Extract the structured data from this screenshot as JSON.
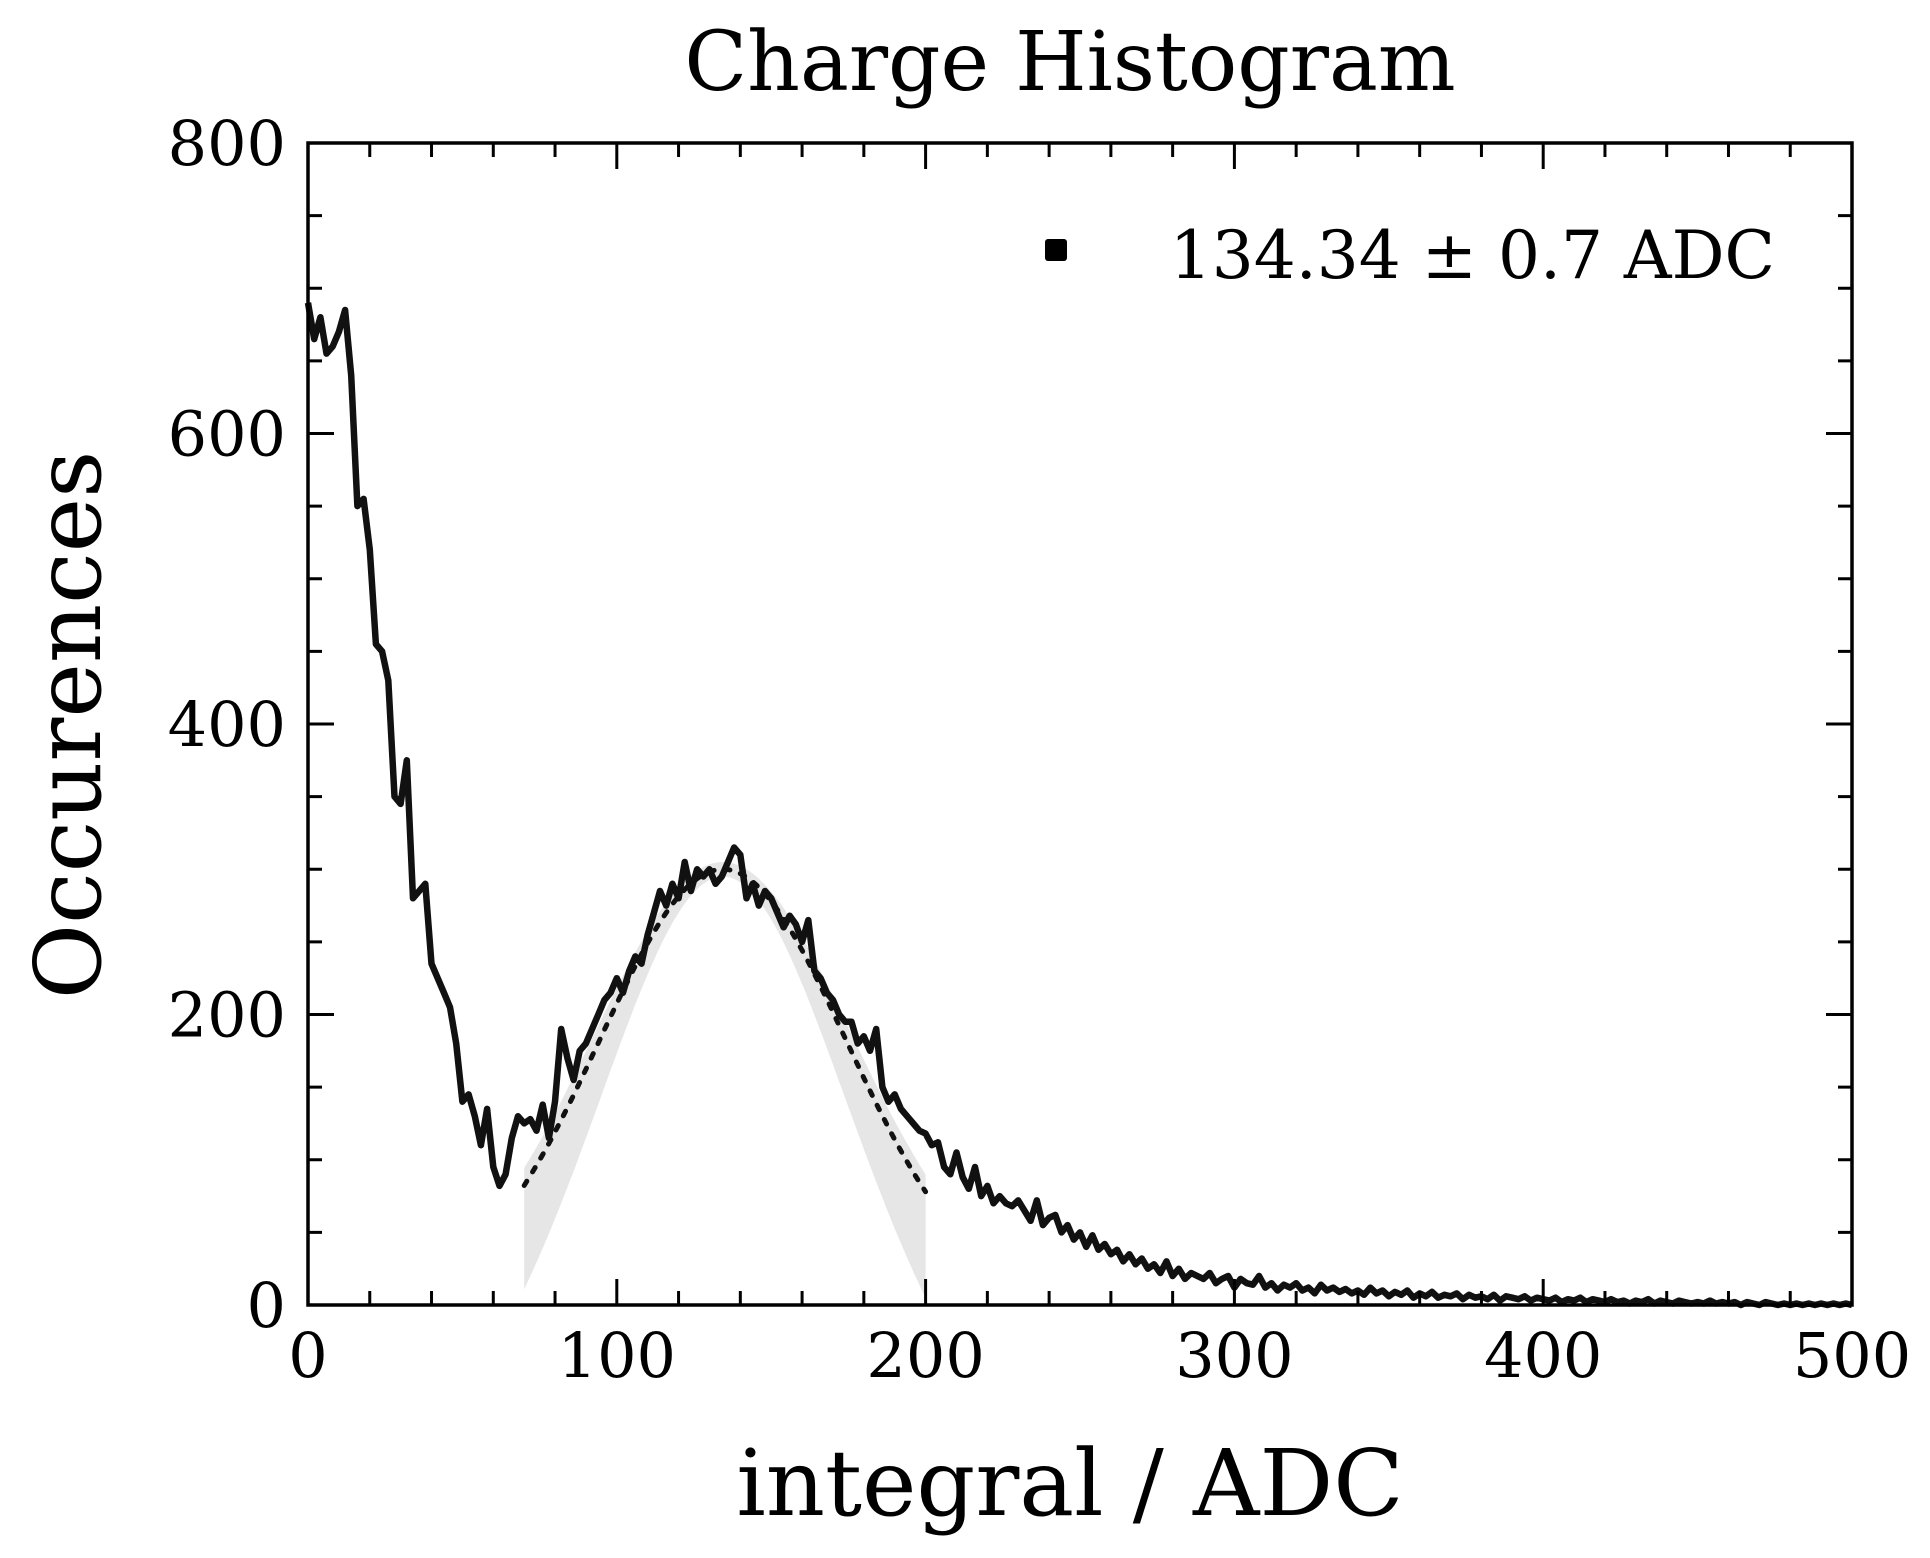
{
  "chart_data": {
    "type": "line",
    "title": "Charge Histogram",
    "xlabel": "integral / ADC",
    "ylabel": "Occurences",
    "xlim": [
      0,
      500
    ],
    "ylim": [
      0,
      800
    ],
    "xticks": [
      0,
      100,
      200,
      300,
      400,
      500
    ],
    "yticks": [
      0,
      200,
      400,
      600,
      800
    ],
    "grid": false,
    "legend": {
      "placement": "top-right",
      "entries": [
        {
          "label": "134.34 ± 0.7 ADC",
          "marker": "square",
          "color": "#000000"
        }
      ]
    },
    "series": [
      {
        "style": "solid",
        "color": "#111111",
        "points": [
          [
            0,
            690
          ],
          [
            2,
            665
          ],
          [
            4,
            680
          ],
          [
            6,
            655
          ],
          [
            8,
            660
          ],
          [
            10,
            670
          ],
          [
            12,
            685
          ],
          [
            14,
            640
          ],
          [
            16,
            550
          ],
          [
            18,
            555
          ],
          [
            20,
            520
          ],
          [
            22,
            455
          ],
          [
            24,
            450
          ],
          [
            26,
            430
          ],
          [
            28,
            350
          ],
          [
            30,
            345
          ],
          [
            32,
            375
          ],
          [
            34,
            280
          ],
          [
            36,
            285
          ],
          [
            38,
            290
          ],
          [
            40,
            235
          ],
          [
            42,
            225
          ],
          [
            44,
            215
          ],
          [
            46,
            205
          ],
          [
            48,
            180
          ],
          [
            50,
            140
          ],
          [
            52,
            145
          ],
          [
            54,
            130
          ],
          [
            56,
            110
          ],
          [
            58,
            135
          ],
          [
            60,
            95
          ],
          [
            62,
            82
          ],
          [
            64,
            90
          ],
          [
            66,
            115
          ],
          [
            68,
            130
          ],
          [
            70,
            125
          ],
          [
            72,
            128
          ],
          [
            74,
            120
          ],
          [
            76,
            138
          ],
          [
            78,
            115
          ],
          [
            80,
            140
          ],
          [
            82,
            190
          ],
          [
            84,
            170
          ],
          [
            86,
            155
          ],
          [
            88,
            175
          ],
          [
            90,
            180
          ],
          [
            92,
            190
          ],
          [
            94,
            200
          ],
          [
            96,
            210
          ],
          [
            98,
            215
          ],
          [
            100,
            225
          ],
          [
            102,
            215
          ],
          [
            104,
            230
          ],
          [
            106,
            240
          ],
          [
            108,
            235
          ],
          [
            110,
            255
          ],
          [
            112,
            270
          ],
          [
            114,
            285
          ],
          [
            116,
            275
          ],
          [
            118,
            290
          ],
          [
            120,
            280
          ],
          [
            122,
            305
          ],
          [
            124,
            285
          ],
          [
            126,
            300
          ],
          [
            128,
            295
          ],
          [
            130,
            300
          ],
          [
            132,
            290
          ],
          [
            134,
            295
          ],
          [
            136,
            305
          ],
          [
            138,
            315
          ],
          [
            140,
            310
          ],
          [
            142,
            280
          ],
          [
            144,
            290
          ],
          [
            146,
            275
          ],
          [
            148,
            285
          ],
          [
            150,
            280
          ],
          [
            152,
            270
          ],
          [
            154,
            260
          ],
          [
            156,
            268
          ],
          [
            158,
            262
          ],
          [
            160,
            250
          ],
          [
            162,
            265
          ],
          [
            164,
            230
          ],
          [
            166,
            225
          ],
          [
            168,
            215
          ],
          [
            170,
            210
          ],
          [
            172,
            200
          ],
          [
            174,
            195
          ],
          [
            176,
            195
          ],
          [
            178,
            180
          ],
          [
            180,
            185
          ],
          [
            182,
            175
          ],
          [
            184,
            190
          ],
          [
            186,
            150
          ],
          [
            188,
            140
          ],
          [
            190,
            145
          ],
          [
            192,
            135
          ],
          [
            194,
            130
          ],
          [
            196,
            125
          ],
          [
            198,
            120
          ],
          [
            200,
            118
          ],
          [
            202,
            110
          ],
          [
            204,
            112
          ],
          [
            206,
            95
          ],
          [
            208,
            90
          ],
          [
            210,
            105
          ],
          [
            212,
            88
          ],
          [
            214,
            80
          ],
          [
            216,
            95
          ],
          [
            218,
            75
          ],
          [
            220,
            82
          ],
          [
            222,
            70
          ],
          [
            224,
            75
          ],
          [
            226,
            70
          ],
          [
            228,
            68
          ],
          [
            230,
            72
          ],
          [
            232,
            65
          ],
          [
            234,
            58
          ],
          [
            236,
            72
          ],
          [
            238,
            55
          ],
          [
            240,
            60
          ],
          [
            242,
            62
          ],
          [
            244,
            50
          ],
          [
            246,
            55
          ],
          [
            248,
            45
          ],
          [
            250,
            50
          ],
          [
            252,
            40
          ],
          [
            254,
            48
          ],
          [
            256,
            38
          ],
          [
            258,
            42
          ],
          [
            260,
            35
          ],
          [
            262,
            38
          ],
          [
            264,
            30
          ],
          [
            266,
            35
          ],
          [
            268,
            28
          ],
          [
            270,
            32
          ],
          [
            272,
            25
          ],
          [
            274,
            28
          ],
          [
            276,
            22
          ],
          [
            278,
            30
          ],
          [
            280,
            20
          ],
          [
            282,
            25
          ],
          [
            284,
            18
          ],
          [
            286,
            22
          ],
          [
            288,
            20
          ],
          [
            290,
            18
          ],
          [
            292,
            22
          ],
          [
            294,
            15
          ],
          [
            296,
            18
          ],
          [
            298,
            20
          ],
          [
            300,
            12
          ],
          [
            302,
            18
          ],
          [
            304,
            15
          ],
          [
            306,
            14
          ],
          [
            308,
            20
          ],
          [
            310,
            12
          ],
          [
            312,
            15
          ],
          [
            314,
            10
          ],
          [
            316,
            14
          ],
          [
            318,
            12
          ],
          [
            320,
            15
          ],
          [
            322,
            10
          ],
          [
            324,
            12
          ],
          [
            326,
            8
          ],
          [
            328,
            14
          ],
          [
            330,
            10
          ],
          [
            332,
            12
          ],
          [
            334,
            9
          ],
          [
            336,
            11
          ],
          [
            338,
            8
          ],
          [
            340,
            10
          ],
          [
            342,
            7
          ],
          [
            344,
            12
          ],
          [
            346,
            8
          ],
          [
            348,
            10
          ],
          [
            350,
            6
          ],
          [
            352,
            9
          ],
          [
            354,
            7
          ],
          [
            356,
            10
          ],
          [
            358,
            5
          ],
          [
            360,
            8
          ],
          [
            362,
            6
          ],
          [
            364,
            9
          ],
          [
            366,
            5
          ],
          [
            368,
            7
          ],
          [
            370,
            6
          ],
          [
            372,
            8
          ],
          [
            374,
            4
          ],
          [
            376,
            7
          ],
          [
            378,
            5
          ],
          [
            380,
            6
          ],
          [
            382,
            4
          ],
          [
            384,
            7
          ],
          [
            386,
            3
          ],
          [
            388,
            6
          ],
          [
            390,
            5
          ],
          [
            392,
            4
          ],
          [
            394,
            6
          ],
          [
            396,
            3
          ],
          [
            398,
            5
          ],
          [
            400,
            4
          ],
          [
            402,
            3
          ],
          [
            404,
            5
          ],
          [
            406,
            2
          ],
          [
            408,
            4
          ],
          [
            410,
            3
          ],
          [
            412,
            5
          ],
          [
            414,
            2
          ],
          [
            416,
            4
          ],
          [
            418,
            3
          ],
          [
            420,
            2
          ],
          [
            422,
            4
          ],
          [
            424,
            2
          ],
          [
            426,
            3
          ],
          [
            428,
            1
          ],
          [
            430,
            3
          ],
          [
            432,
            2
          ],
          [
            434,
            4
          ],
          [
            436,
            1
          ],
          [
            438,
            3
          ],
          [
            440,
            2
          ],
          [
            442,
            1
          ],
          [
            444,
            3
          ],
          [
            446,
            2
          ],
          [
            448,
            1
          ],
          [
            450,
            2
          ],
          [
            452,
            1
          ],
          [
            454,
            3
          ],
          [
            456,
            1
          ],
          [
            458,
            2
          ],
          [
            460,
            1
          ],
          [
            462,
            2
          ],
          [
            464,
            0
          ],
          [
            466,
            2
          ],
          [
            468,
            1
          ],
          [
            470,
            0
          ],
          [
            472,
            2
          ],
          [
            474,
            1
          ],
          [
            476,
            0
          ],
          [
            478,
            1
          ],
          [
            480,
            0
          ],
          [
            482,
            1
          ],
          [
            484,
            0
          ],
          [
            486,
            1
          ],
          [
            488,
            0
          ],
          [
            490,
            1
          ],
          [
            492,
            0
          ],
          [
            494,
            1
          ],
          [
            496,
            0
          ],
          [
            498,
            1
          ],
          [
            500,
            0
          ]
        ]
      },
      {
        "style": "dotted",
        "color": "#111111",
        "fit": "gaussian",
        "mean": 134.34,
        "sigma": 40,
        "amplitude": 300,
        "x_range": [
          70,
          200
        ]
      }
    ],
    "band": {
      "color": "#e6e6e6",
      "x_range": [
        70,
        200
      ],
      "upper": {
        "mean": 134.34,
        "sigma": 42,
        "amplitude": 305
      },
      "lower": {
        "mean": 134.34,
        "sigma": 36,
        "amplitude": 295
      }
    }
  }
}
